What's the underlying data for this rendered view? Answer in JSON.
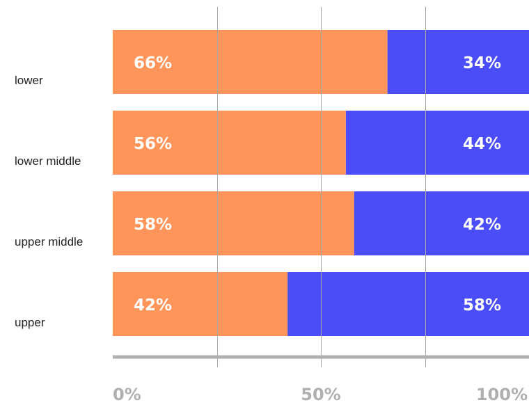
{
  "chart_data": {
    "type": "bar",
    "orientation": "horizontal",
    "stacked": true,
    "categories": [
      "lower",
      "lower middle",
      "upper middle",
      "upper"
    ],
    "series": [
      {
        "values": [
          66,
          56,
          58,
          42
        ],
        "color": "#FF955A"
      },
      {
        "values": [
          34,
          44,
          42,
          58
        ],
        "color": "#4B4EF8"
      }
    ],
    "data_labels": [
      [
        "66%",
        "56%",
        "58%",
        "42%"
      ],
      [
        "34%",
        "44%",
        "42%",
        "58%"
      ]
    ],
    "x_ticks": [
      {
        "value": 0,
        "label": "0%"
      },
      {
        "value": 50,
        "label": "50%"
      },
      {
        "value": 100,
        "label": "100%"
      }
    ],
    "gridlines": [
      25,
      50,
      75
    ],
    "xlim": [
      0,
      100
    ],
    "grid": true,
    "legend": "none",
    "title": "",
    "xlabel": "",
    "ylabel": ""
  }
}
